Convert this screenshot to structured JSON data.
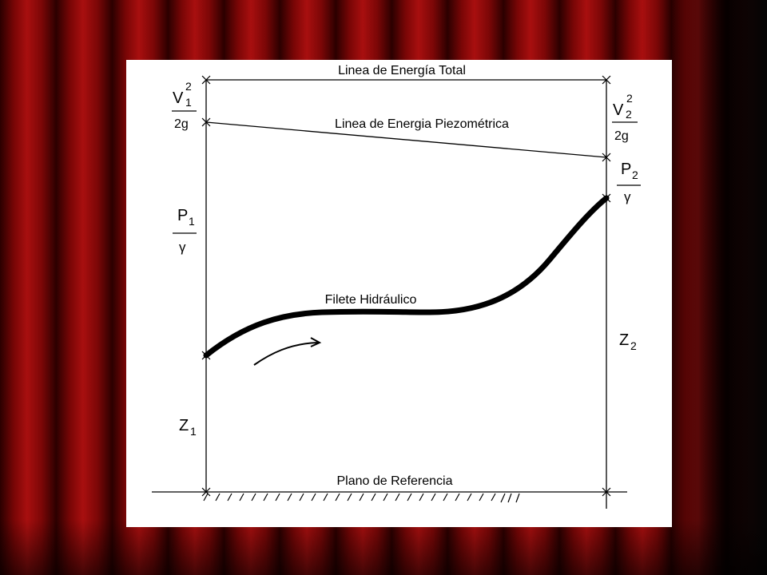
{
  "title": "Linea de Energía Total",
  "labels": {
    "piezometric_line": "Linea de Energia Piezométrica",
    "hydraulic_filament": "Filete Hidráulico",
    "reference_plane": "Plano de Referencia"
  },
  "terms": {
    "v1": "V",
    "v1_sub": "1",
    "v1_exp": "2",
    "v1_den": "2g",
    "v2": "V",
    "v2_sub": "2",
    "v2_exp": "2",
    "v2_den": "2g",
    "p1": "P",
    "p1_sub": "1",
    "p1_den": "γ",
    "p2": "P",
    "p2_sub": "2",
    "p2_den": "γ",
    "z1": "Z",
    "z1_sub": "1",
    "z2": "Z",
    "z2_sub": "2"
  },
  "colors": {
    "curtain": "#8a0a0a",
    "panel": "#ffffff",
    "ink": "#000000"
  }
}
